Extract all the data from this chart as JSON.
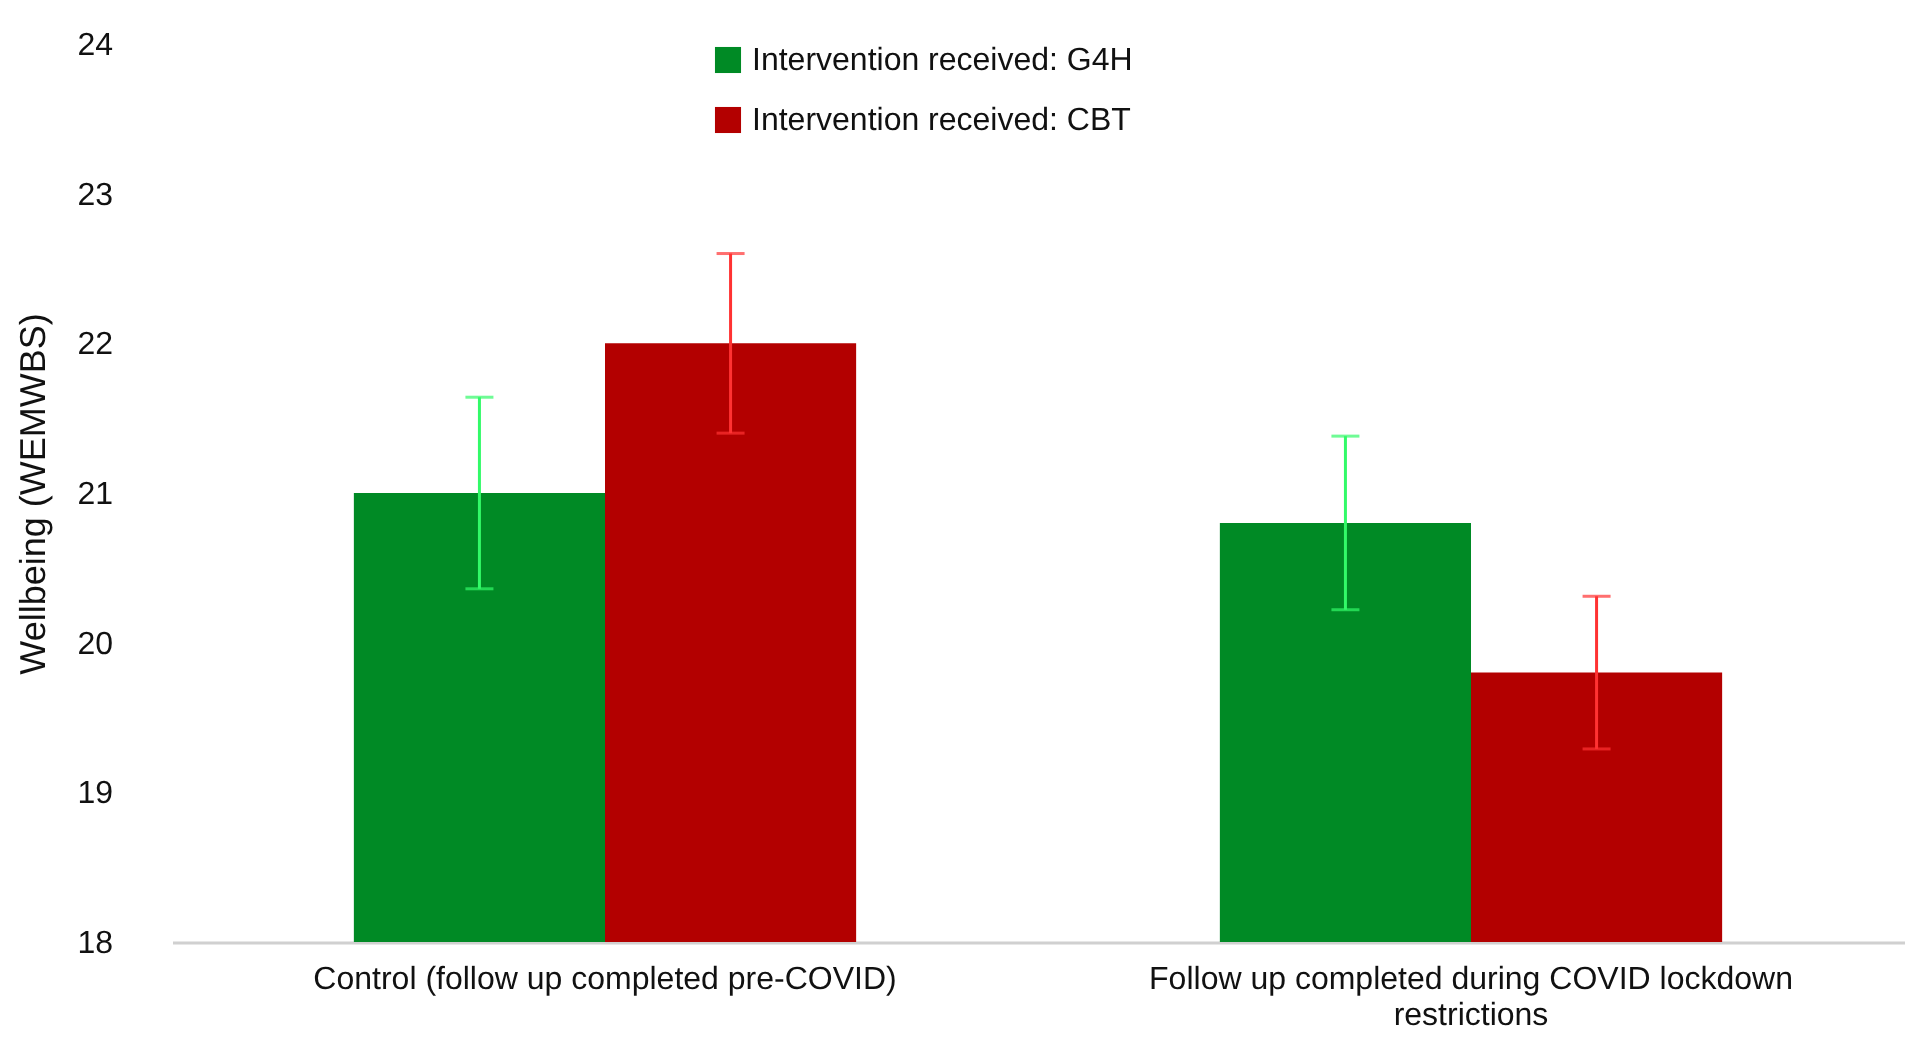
{
  "chart_data": {
    "type": "bar",
    "ylabel": "Wellbeing (WEMWBS)",
    "categories": [
      "Control (follow up completed pre-COVID)",
      "Follow up completed during COVID lockdown restrictions"
    ],
    "series": [
      {
        "name": "Intervention received: G4H",
        "color": "#008a25",
        "values": [
          21.0,
          20.8
        ],
        "errors": [
          0.64,
          0.58
        ]
      },
      {
        "name": "Intervention received: CBT",
        "color": "#b30000",
        "values": [
          22.0,
          19.8
        ],
        "errors": [
          0.6,
          0.51
        ]
      }
    ],
    "ylim": [
      18,
      24
    ],
    "yticks": [
      18,
      19,
      20,
      21,
      22,
      23,
      24
    ],
    "grid": false,
    "legend": "top"
  }
}
